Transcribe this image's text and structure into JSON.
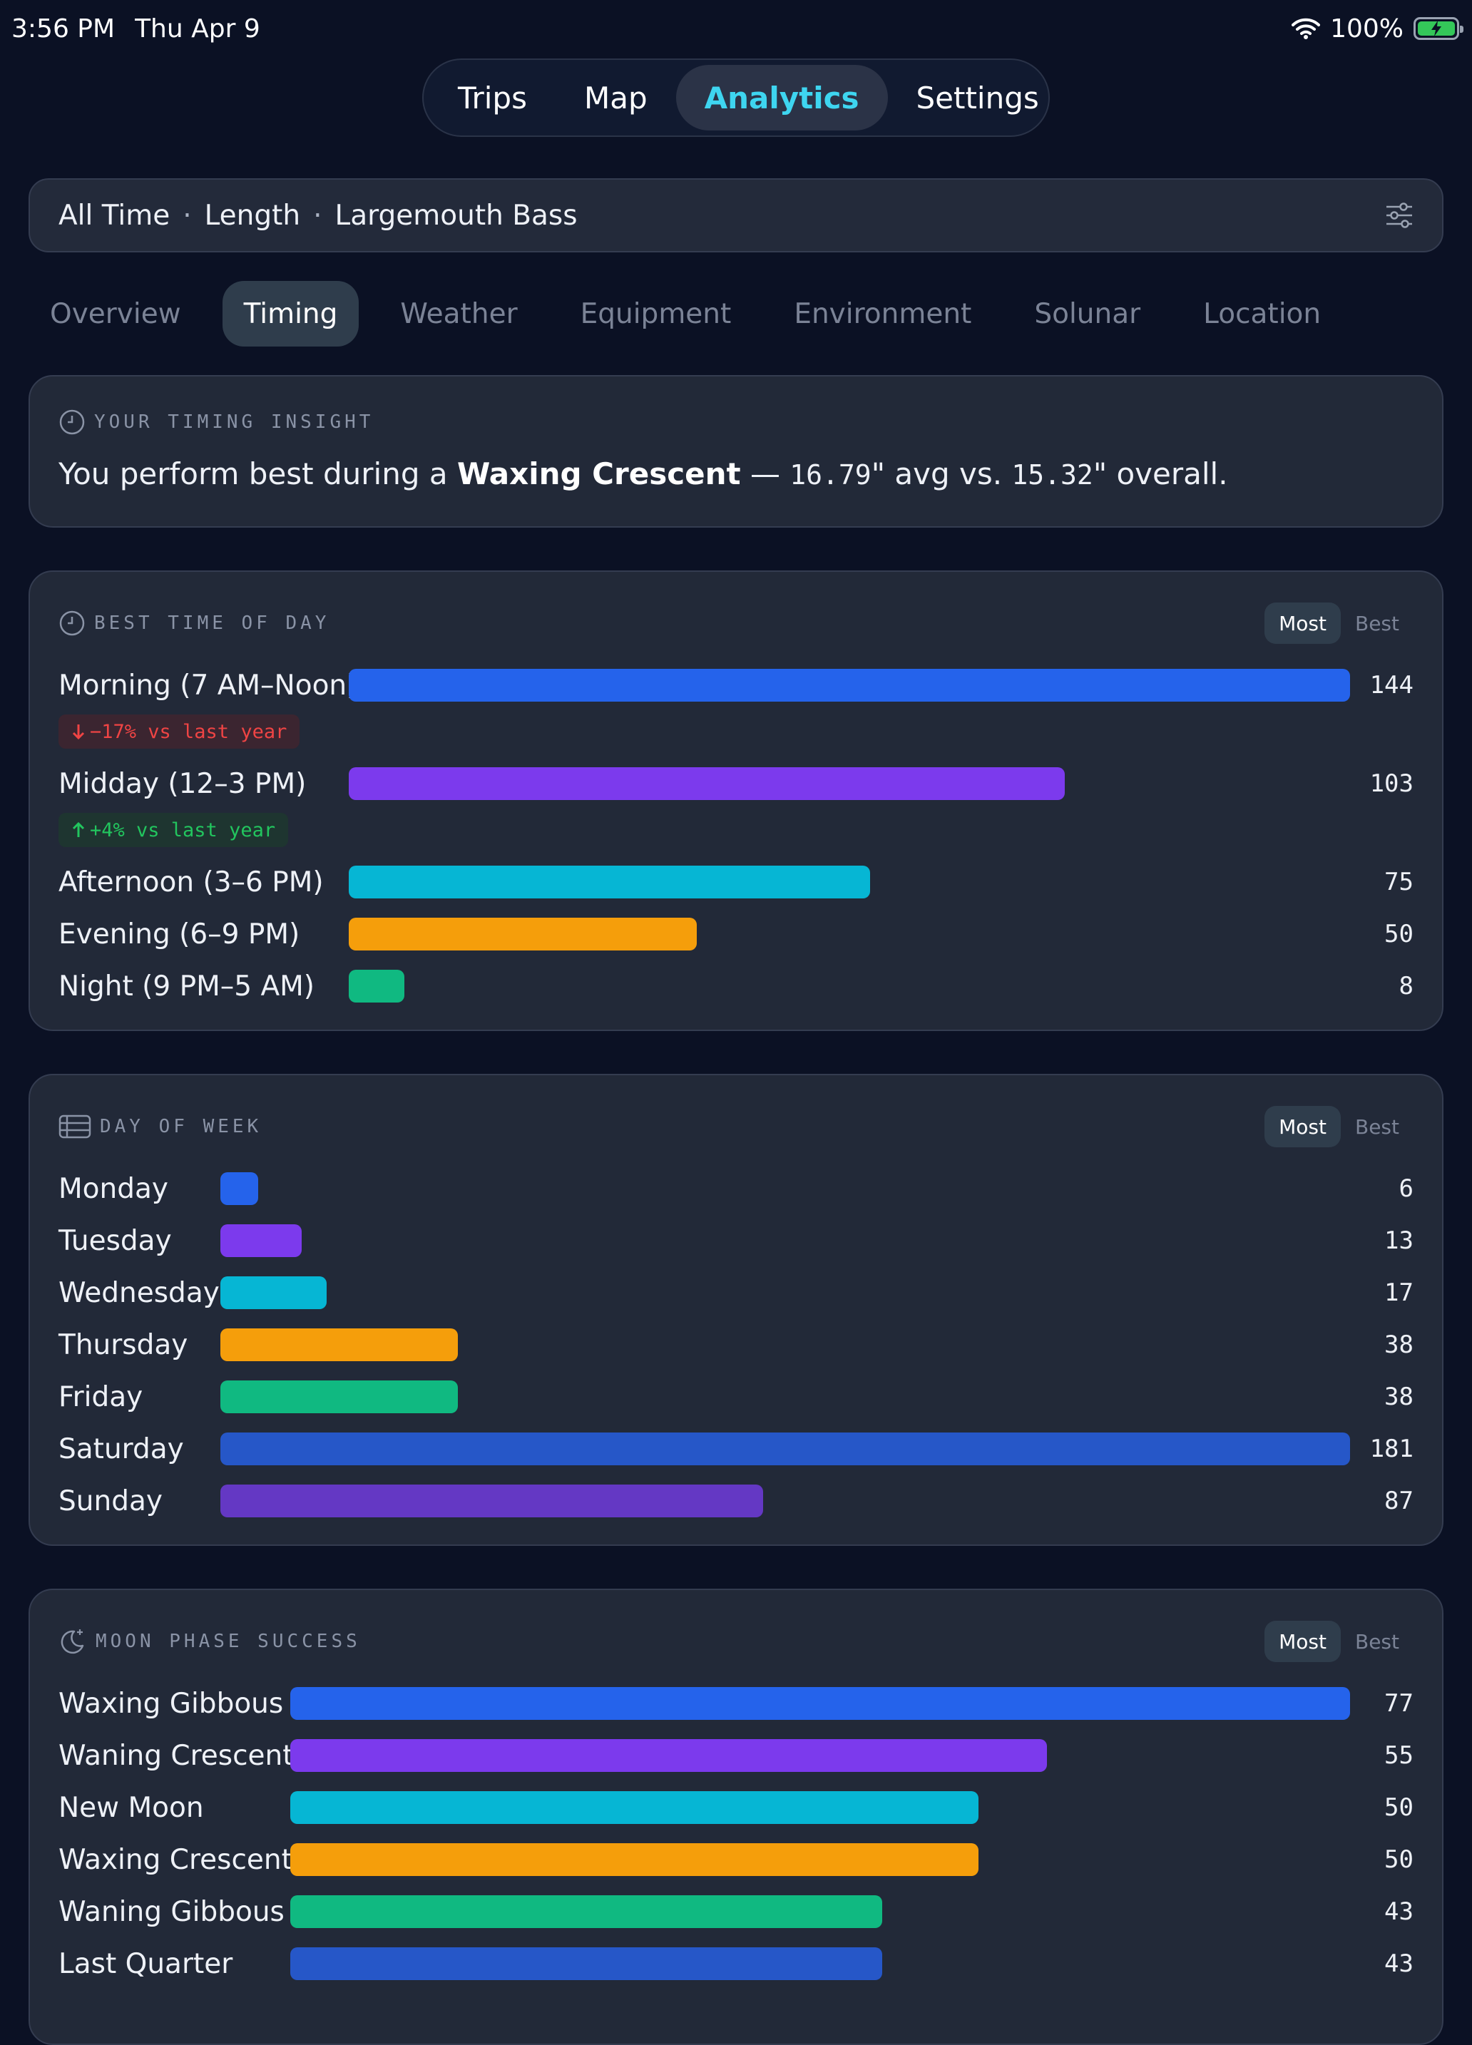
{
  "status": {
    "time": "3:56 PM",
    "date": "Thu Apr 9",
    "battery": "100%"
  },
  "nav": {
    "tabs": [
      {
        "label": "Trips"
      },
      {
        "label": "Map"
      },
      {
        "label": "Analytics"
      },
      {
        "label": "Settings"
      }
    ],
    "active": "Analytics"
  },
  "filter": {
    "time_range": "All Time",
    "metric": "Length",
    "species": "Largemouth Bass",
    "separator": "·"
  },
  "sub_tabs": [
    "Overview",
    "Timing",
    "Weather",
    "Equipment",
    "Environment",
    "Solunar",
    "Location"
  ],
  "sub_tab_active": "Timing",
  "insight": {
    "title": "YOUR TIMING INSIGHT",
    "prefix": "You perform best during a",
    "highlight": "Waxing Crescent",
    "dash": "—",
    "value": "16.79",
    "mid": "\" avg vs.",
    "overall": "15.32",
    "suffix": "\" overall."
  },
  "toggle": {
    "most": "Most",
    "best": "Best"
  },
  "time_of_day": {
    "title": "BEST TIME OF DAY",
    "max": 144,
    "rows": [
      {
        "label": "Morning (7 AM–Noon)",
        "value": 144,
        "color": "#2563eb",
        "badge": {
          "text": "−17% vs last year",
          "dir": "down"
        }
      },
      {
        "label": "Midday (12–3 PM)",
        "value": 103,
        "color": "#7c3aed",
        "badge": {
          "text": "+4% vs last year",
          "dir": "up"
        }
      },
      {
        "label": "Afternoon (3–6 PM)",
        "value": 75,
        "color": "#06b6d4"
      },
      {
        "label": "Evening (6–9 PM)",
        "value": 50,
        "color": "#f59e0b"
      },
      {
        "label": "Night (9 PM–5 AM)",
        "value": 8,
        "color": "#10b981"
      }
    ]
  },
  "day_of_week": {
    "title": "DAY OF WEEK",
    "max": 181,
    "rows": [
      {
        "label": "Monday",
        "value": 6,
        "color": "#2563eb"
      },
      {
        "label": "Tuesday",
        "value": 13,
        "color": "#7c3aed"
      },
      {
        "label": "Wednesday",
        "value": 17,
        "color": "#06b6d4"
      },
      {
        "label": "Thursday",
        "value": 38,
        "color": "#f59e0b"
      },
      {
        "label": "Friday",
        "value": 38,
        "color": "#10b981"
      },
      {
        "label": "Saturday",
        "value": 181,
        "color": "#2657c8"
      },
      {
        "label": "Sunday",
        "value": 87,
        "color": "#6438c4"
      }
    ]
  },
  "moon_phase": {
    "title": "MOON PHASE SUCCESS",
    "max": 77,
    "rows": [
      {
        "label": "Waxing Gibbous",
        "value": 77,
        "color": "#2563eb"
      },
      {
        "label": "Waning Crescent",
        "value": 55,
        "color": "#7c3aed"
      },
      {
        "label": "New Moon",
        "value": 50,
        "color": "#06b6d4"
      },
      {
        "label": "Waxing Crescent",
        "value": 50,
        "color": "#f59e0b"
      },
      {
        "label": "Waning Gibbous",
        "value": 43,
        "color": "#10b981"
      },
      {
        "label": "Last Quarter",
        "value": 43,
        "color": "#2657c8"
      }
    ]
  }
}
